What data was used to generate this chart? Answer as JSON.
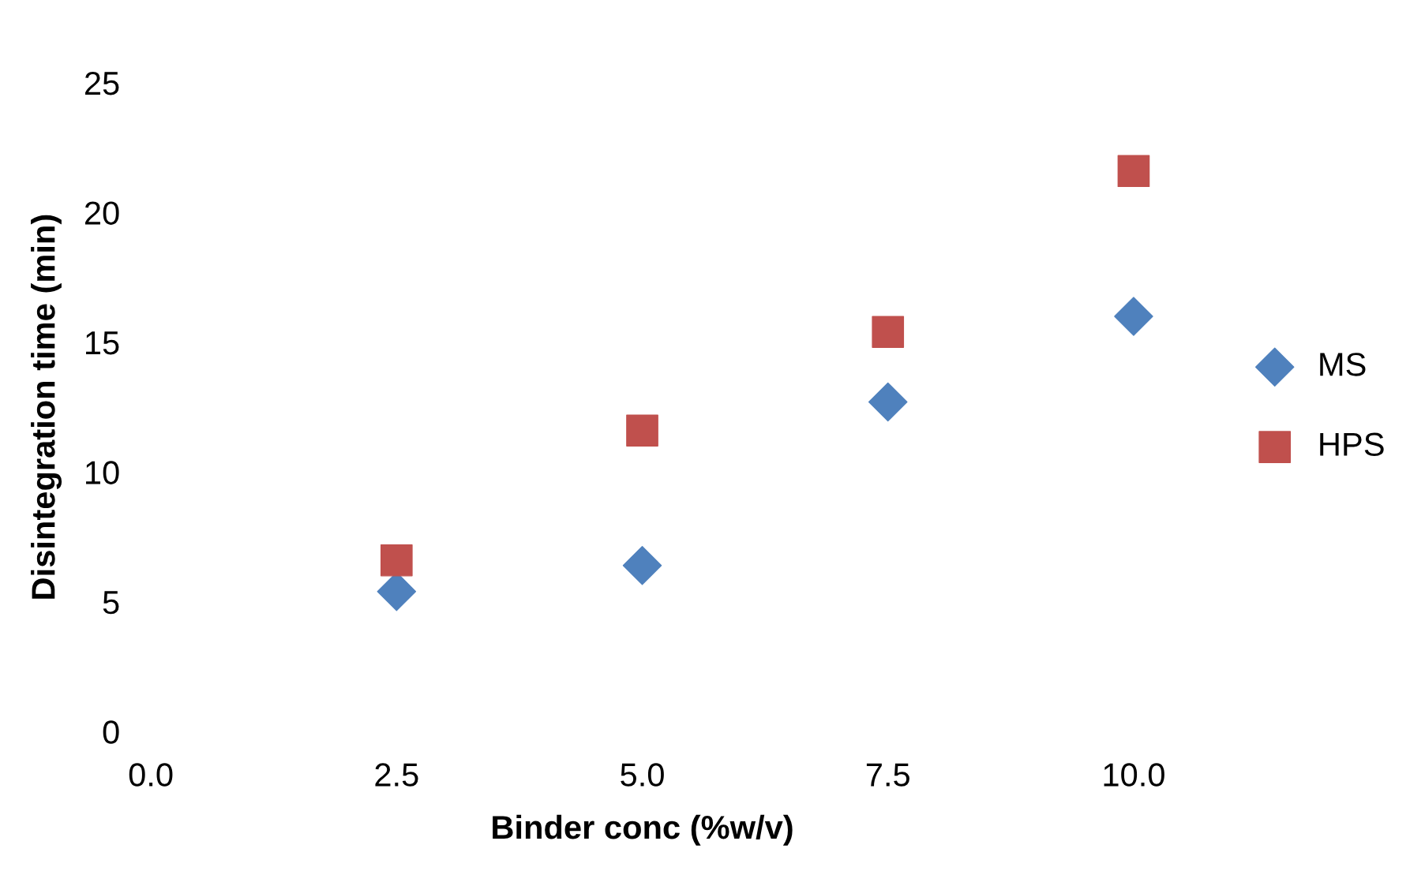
{
  "chart_data": {
    "type": "scatter",
    "xlabel": "Binder conc (%w/v)",
    "ylabel": "Disintegration time (min)",
    "xlim": [
      0,
      10
    ],
    "xticks": [
      {
        "value": 0,
        "label": "0.0"
      },
      {
        "value": 2.5,
        "label": "2.5"
      },
      {
        "value": 5,
        "label": "5.0"
      },
      {
        "value": 7.5,
        "label": "7.5"
      },
      {
        "value": 10,
        "label": "10.0"
      }
    ],
    "ylim": [
      0,
      25
    ],
    "yticks": [
      0,
      5,
      10,
      15,
      20,
      25
    ],
    "grid": false,
    "legend": "right",
    "series": [
      {
        "name": "MS",
        "color": "#4f81bd",
        "marker": "diamond",
        "x": [
          2.5,
          5,
          7.5,
          10
        ],
        "values": [
          5.4,
          6.4,
          12.7,
          16.0
        ]
      },
      {
        "name": "HPS",
        "color": "#c0504d",
        "marker": "square",
        "x": [
          2.5,
          5,
          7.5,
          10
        ],
        "values": [
          6.6,
          11.6,
          15.4,
          21.6
        ]
      }
    ]
  }
}
